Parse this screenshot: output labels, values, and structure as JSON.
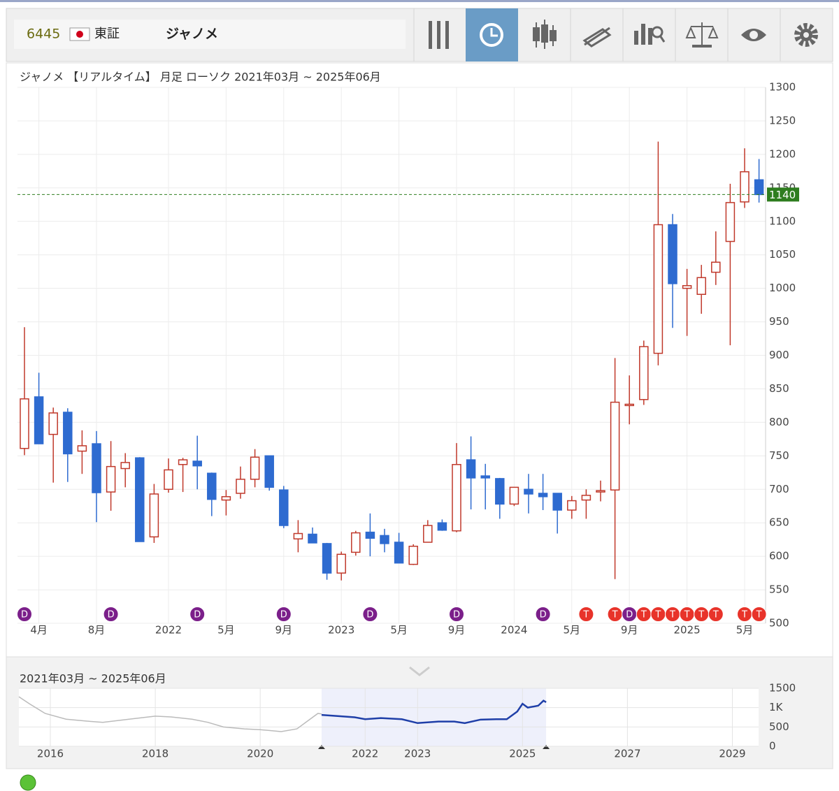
{
  "header": {
    "code": "6445",
    "market": "東証",
    "name": "ジャノメ"
  },
  "chart_data": [
    {
      "type": "candlestick",
      "title": "ジャノメ 【リアルタイム】 月足 ローソク 2021年03月 ~ 2025年06月",
      "categories": [
        null,
        "4月",
        null,
        null,
        null,
        "8月",
        null,
        null,
        null,
        null,
        "2022",
        null,
        null,
        null,
        "5月",
        null,
        null,
        null,
        "9月",
        null,
        null,
        null,
        "2023",
        null,
        null,
        null,
        "5月",
        null,
        null,
        null,
        "9月",
        null,
        null,
        null,
        "2024",
        null,
        null,
        null,
        "5月",
        null,
        null,
        null,
        "9月",
        null,
        null,
        null,
        "2025",
        null,
        null,
        null,
        "5月",
        null
      ],
      "open": [
        761,
        838,
        782,
        815,
        757,
        768,
        696,
        731,
        747,
        629,
        700,
        737,
        742,
        724,
        684,
        694,
        715,
        750,
        699,
        626,
        633,
        619,
        575,
        606,
        636,
        631,
        621,
        588,
        621,
        650,
        638,
        744,
        720,
        716,
        678,
        700,
        694,
        694,
        669,
        684,
        696,
        699,
        825,
        834,
        903,
        1095,
        1000,
        991,
        1024,
        1070,
        1129,
        1162
      ],
      "high": [
        942,
        874,
        822,
        821,
        788,
        787,
        772,
        754,
        748,
        708,
        746,
        747,
        780,
        725,
        699,
        734,
        760,
        750,
        705,
        654,
        643,
        620,
        607,
        638,
        664,
        641,
        635,
        618,
        654,
        655,
        769,
        779,
        738,
        717,
        703,
        723,
        723,
        694,
        690,
        700,
        713,
        896,
        870,
        922,
        1219,
        1111,
        1029,
        1035,
        1085,
        1156,
        1209,
        1193
      ],
      "low": [
        751,
        768,
        710,
        711,
        723,
        651,
        668,
        703,
        622,
        620,
        695,
        696,
        700,
        660,
        661,
        686,
        703,
        698,
        642,
        606,
        620,
        565,
        564,
        601,
        600,
        606,
        590,
        587,
        621,
        638,
        636,
        670,
        670,
        656,
        675,
        664,
        669,
        634,
        656,
        656,
        682,
        566,
        797,
        826,
        885,
        941,
        929,
        962,
        1005,
        915,
        1120,
        1128
      ],
      "close": [
        835,
        768,
        814,
        753,
        765,
        695,
        734,
        740,
        622,
        693,
        729,
        744,
        735,
        685,
        689,
        715,
        748,
        703,
        646,
        634,
        620,
        575,
        603,
        635,
        627,
        619,
        590,
        615,
        646,
        639,
        737,
        717,
        717,
        678,
        703,
        693,
        689,
        669,
        683,
        691,
        698,
        830,
        827,
        913,
        1095,
        1007,
        1004,
        1016,
        1039,
        1128,
        1174,
        1140
      ],
      "up_color": "#c0392b",
      "down_color": "#2e6bd0",
      "ylim": [
        500,
        1300
      ],
      "yticks": [
        500,
        550,
        600,
        650,
        700,
        750,
        800,
        850,
        900,
        950,
        1000,
        1050,
        1100,
        1150,
        1200,
        1250,
        1300
      ],
      "grid": true,
      "last_price": 1140,
      "last_price_color": "#2e7d1f",
      "events": [
        {
          "index": 0,
          "label": "D"
        },
        {
          "index": 6,
          "label": "D"
        },
        {
          "index": 12,
          "label": "D"
        },
        {
          "index": 18,
          "label": "D"
        },
        {
          "index": 24,
          "label": "D"
        },
        {
          "index": 30,
          "label": "D"
        },
        {
          "index": 36,
          "label": "D"
        },
        {
          "index": 39,
          "label": "T"
        },
        {
          "index": 41,
          "label": "T"
        },
        {
          "index": 42,
          "label": "D"
        },
        {
          "index": 43,
          "label": "T"
        },
        {
          "index": 44,
          "label": "T"
        },
        {
          "index": 45,
          "label": "T"
        },
        {
          "index": 46,
          "label": "T"
        },
        {
          "index": 47,
          "label": "T"
        },
        {
          "index": 48,
          "label": "T"
        },
        {
          "index": 50,
          "label": "T"
        },
        {
          "index": 51,
          "label": "T"
        }
      ]
    },
    {
      "type": "line",
      "title": "2021年03月 ~ 2025年06月",
      "series": [
        {
          "color": "#bbbbbb",
          "x": [
            2015.4,
            2015.6,
            2015.9,
            2016.3,
            2016.7,
            2017.0,
            2017.5,
            2018.0,
            2018.3,
            2018.7,
            2019.0,
            2019.3,
            2019.7,
            2020.0,
            2020.4,
            2020.7,
            2020.9,
            2021.1,
            2021.17
          ],
          "values": [
            1280,
            1100,
            850,
            700,
            650,
            620,
            700,
            780,
            760,
            700,
            620,
            500,
            450,
            430,
            380,
            450,
            650,
            850,
            835
          ]
        },
        {
          "color": "#1f3fa8",
          "x": [
            2021.17,
            2021.5,
            2021.8,
            2022.0,
            2022.3,
            2022.7,
            2023.0,
            2023.4,
            2023.7,
            2023.9,
            2024.2,
            2024.5,
            2024.7,
            2024.9,
            2025.0,
            2025.1,
            2025.3,
            2025.4,
            2025.45
          ],
          "values": [
            810,
            780,
            750,
            700,
            730,
            700,
            600,
            640,
            640,
            600,
            690,
            700,
            700,
            900,
            1100,
            1000,
            1050,
            1180,
            1140
          ]
        }
      ],
      "range": [
        2021.17,
        2025.45
      ],
      "xlim": [
        2015.4,
        2029.5
      ],
      "xticks": [
        2016,
        2018,
        2020,
        2022,
        2023,
        2025,
        2027,
        2029
      ],
      "ylim": [
        0,
        1500
      ],
      "yticks": [
        0,
        500,
        {
          "value": 1000,
          "label": "1K"
        },
        1500
      ]
    }
  ]
}
